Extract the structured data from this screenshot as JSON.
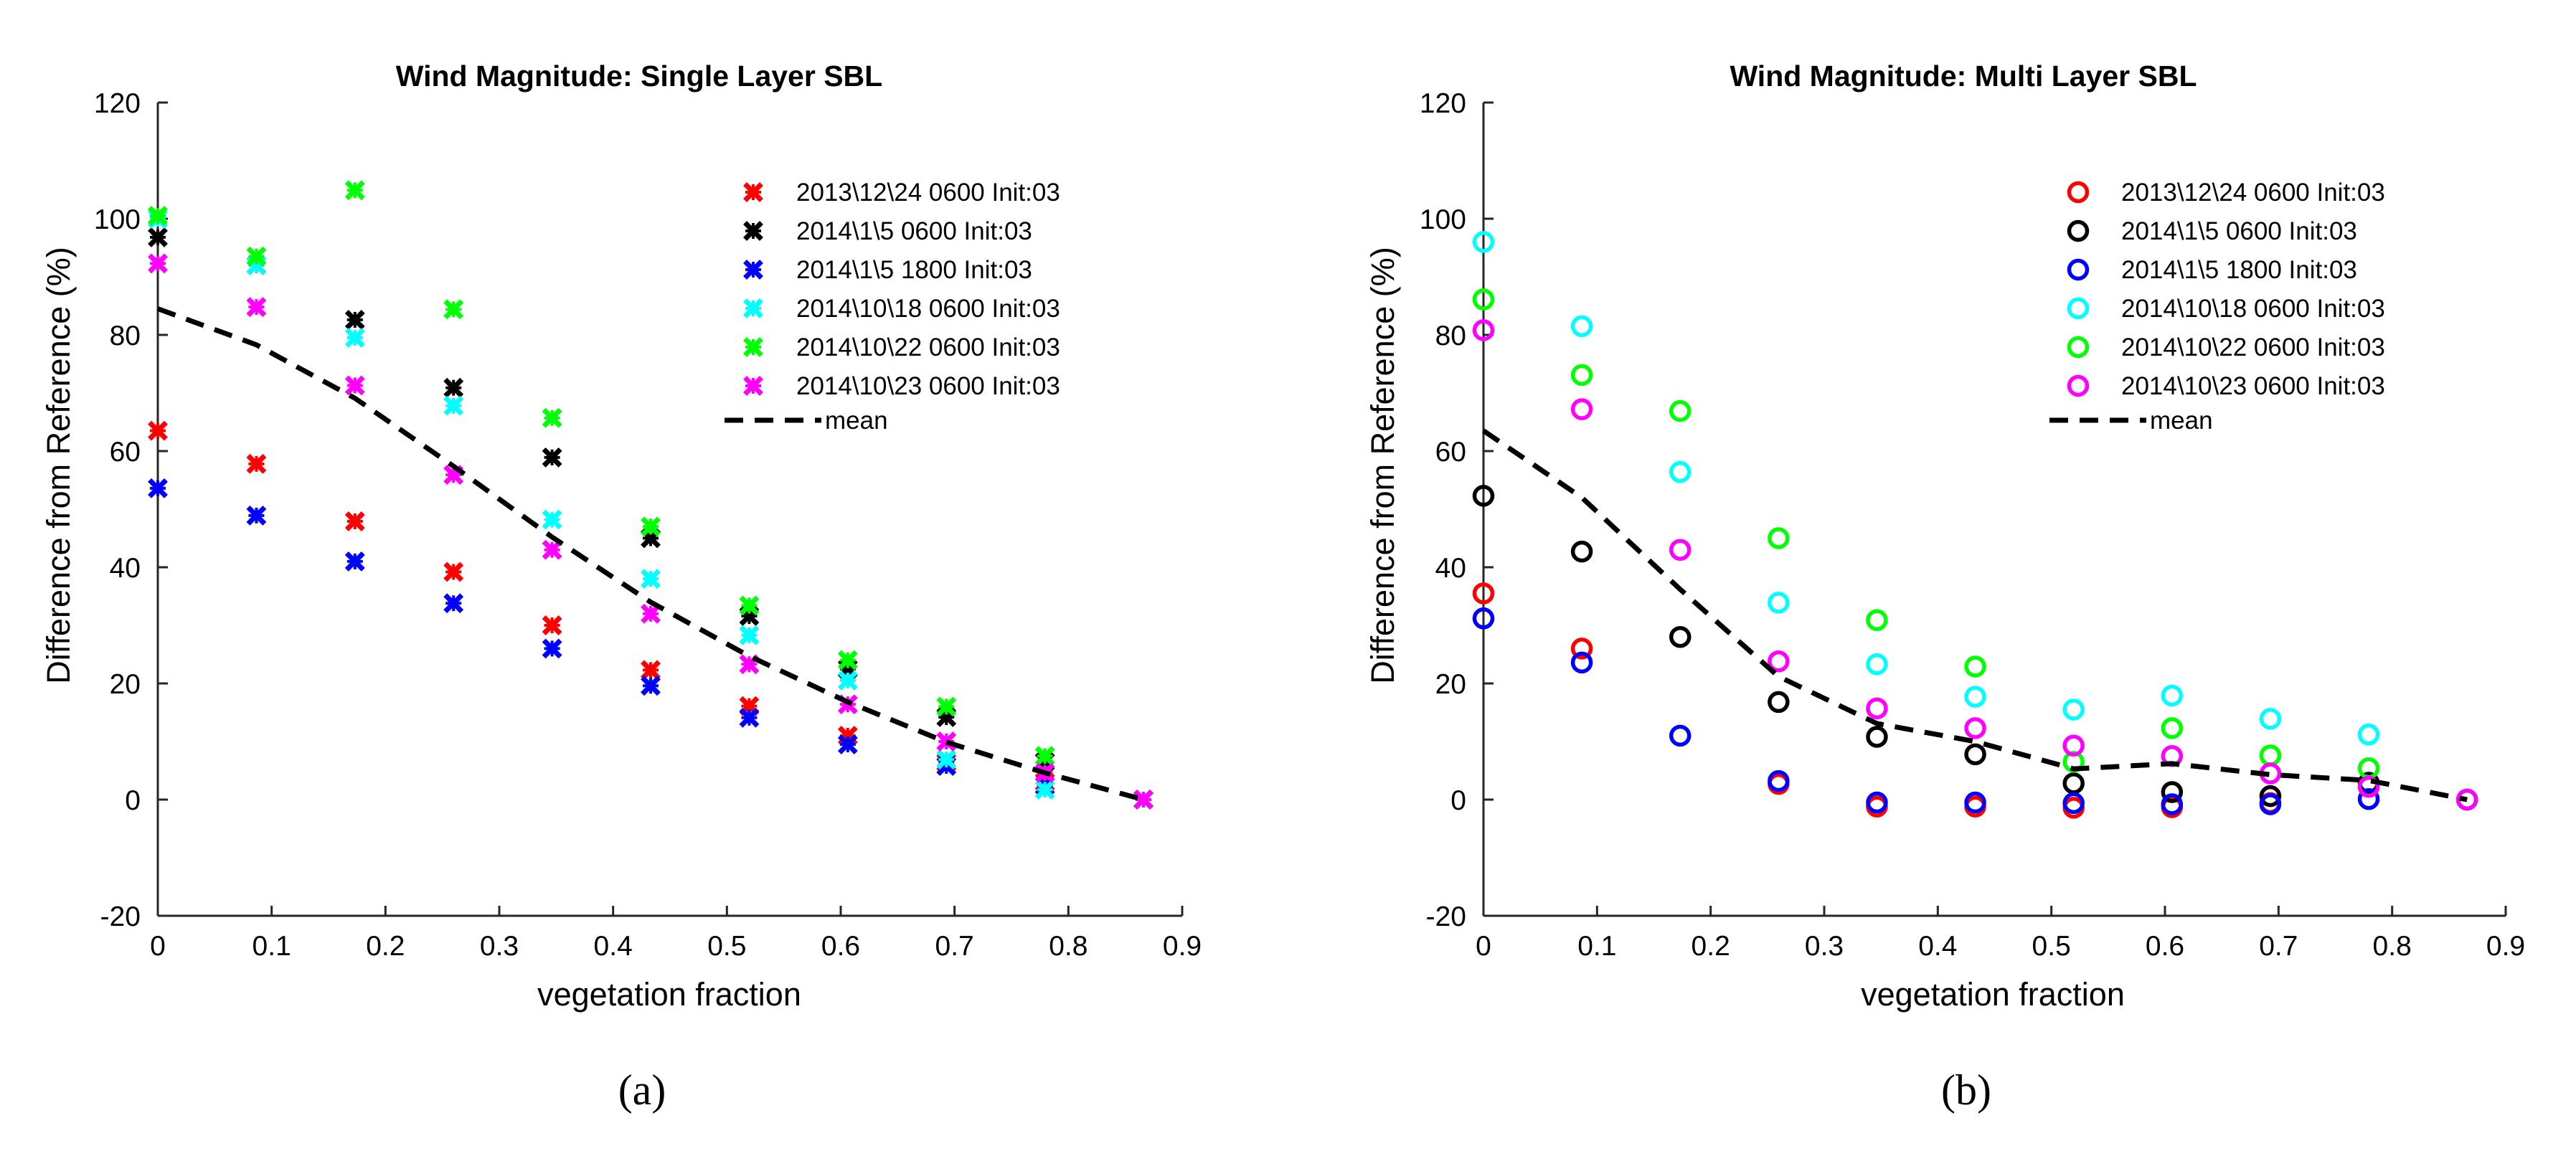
{
  "chart_data": [
    {
      "type": "scatter",
      "id": "a",
      "title": "Wind Magnitude: Single Layer SBL",
      "xlabel": "vegetation fraction",
      "ylabel": "Difference from Reference (%)",
      "xlim": [
        0,
        0.9
      ],
      "ylim": [
        -20,
        120
      ],
      "xticks": [
        "0",
        "0.1",
        "0.2",
        "0.3",
        "0.4",
        "0.5",
        "0.6",
        "0.7",
        "0.8",
        "0.9"
      ],
      "yticks": [
        "-20",
        "0",
        "20",
        "40",
        "60",
        "80",
        "100",
        "120"
      ],
      "marker": "x",
      "caption": "(a)",
      "x": [
        0,
        0.0866,
        0.1732,
        0.2598,
        0.3464,
        0.433,
        0.5196,
        0.6062,
        0.6928,
        0.7794,
        0.866
      ],
      "series": [
        {
          "name": "2013\\12\\24 0600 Init:03",
          "color": "#ff0000",
          "values": [
            63.5,
            57.8,
            47.9,
            39.2,
            30.0,
            22.3,
            16.1,
            11.0,
            6.4,
            3.0,
            0
          ]
        },
        {
          "name": "2014\\1\\5 0600 Init:03",
          "color": "#000000",
          "values": [
            96.8,
            92.0,
            82.6,
            70.9,
            58.9,
            45.0,
            31.6,
            22.5,
            14.2,
            6.5,
            0
          ]
        },
        {
          "name": "2014\\1\\5 1800 Init:03",
          "color": "#0000ff",
          "values": [
            53.6,
            48.9,
            41.0,
            33.8,
            26.0,
            19.6,
            14.1,
            9.5,
            5.8,
            2.4,
            0
          ]
        },
        {
          "name": "2014\\10\\18 0600 Init:03",
          "color": "#00ffff",
          "values": [
            100.0,
            92.0,
            79.5,
            67.8,
            48.2,
            38.0,
            28.3,
            20.5,
            6.9,
            1.7,
            0
          ]
        },
        {
          "name": "2014\\10\\22 0600 Init:03",
          "color": "#00ff00",
          "values": [
            100.5,
            93.5,
            104.9,
            84.4,
            65.7,
            47.0,
            33.4,
            24.0,
            16.0,
            7.5,
            0
          ]
        },
        {
          "name": "2014\\10\\23 0600 Init:03",
          "color": "#ff00ff",
          "values": [
            92.3,
            84.8,
            71.3,
            55.9,
            43.0,
            32.0,
            23.3,
            16.4,
            10.0,
            4.6,
            0
          ]
        }
      ],
      "mean": {
        "name": "mean",
        "color": "#000000",
        "values": [
          84.5,
          78.3,
          69.1,
          57.4,
          45.2,
          34.0,
          24.7,
          16.8,
          9.9,
          4.6,
          0
        ]
      }
    },
    {
      "type": "scatter",
      "id": "b",
      "title": "Wind Magnitude: Multi Layer SBL",
      "xlabel": "vegetation fraction",
      "ylabel": "Difference from Reference (%)",
      "xlim": [
        0,
        0.9
      ],
      "ylim": [
        -20,
        120
      ],
      "xticks": [
        "0",
        "0.1",
        "0.2",
        "0.3",
        "0.4",
        "0.5",
        "0.6",
        "0.7",
        "0.8",
        "0.9"
      ],
      "yticks": [
        "-20",
        "0",
        "20",
        "40",
        "60",
        "80",
        "100",
        "120"
      ],
      "marker": "o",
      "caption": "(b)",
      "x": [
        0,
        0.0866,
        0.1732,
        0.2598,
        0.3464,
        0.433,
        0.5196,
        0.6062,
        0.6928,
        0.7794,
        0.866
      ],
      "series": [
        {
          "name": "2013\\12\\24 0600 Init:03",
          "color": "#ff0000",
          "values": [
            35.5,
            26.0,
            null,
            2.7,
            -1.2,
            -1.2,
            -1.4,
            -1.3,
            -0.6,
            null,
            0
          ]
        },
        {
          "name": "2014\\1\\5 0600 Init:03",
          "color": "#000000",
          "values": [
            52.3,
            42.7,
            28.0,
            16.8,
            10.8,
            7.8,
            2.8,
            1.3,
            0.6,
            2.9,
            0
          ]
        },
        {
          "name": "2014\\1\\5 1800 Init:03",
          "color": "#0000ff",
          "values": [
            31.2,
            23.6,
            11.0,
            3.2,
            -0.5,
            -0.5,
            -0.6,
            -0.8,
            -0.8,
            0.1,
            0
          ]
        },
        {
          "name": "2014\\10\\18 0600 Init:03",
          "color": "#00ffff",
          "values": [
            96.0,
            81.5,
            56.4,
            33.9,
            23.3,
            17.7,
            15.5,
            17.9,
            13.9,
            11.2,
            0
          ]
        },
        {
          "name": "2014\\10\\22 0600 Init:03",
          "color": "#00ff00",
          "values": [
            86.1,
            73.1,
            66.9,
            45.0,
            30.9,
            22.9,
            6.5,
            12.3,
            7.6,
            5.4,
            0
          ]
        },
        {
          "name": "2014\\10\\23 0600 Init:03",
          "color": "#ff00ff",
          "values": [
            80.8,
            67.2,
            43.0,
            23.8,
            15.7,
            12.3,
            9.3,
            7.5,
            4.5,
            2.2,
            0
          ]
        }
      ],
      "mean": {
        "name": "mean",
        "color": "#000000",
        "values": [
          63.5,
          52.0,
          36.2,
          21.2,
          13.1,
          10.0,
          5.3,
          6.2,
          4.3,
          3.3,
          0
        ]
      }
    }
  ]
}
